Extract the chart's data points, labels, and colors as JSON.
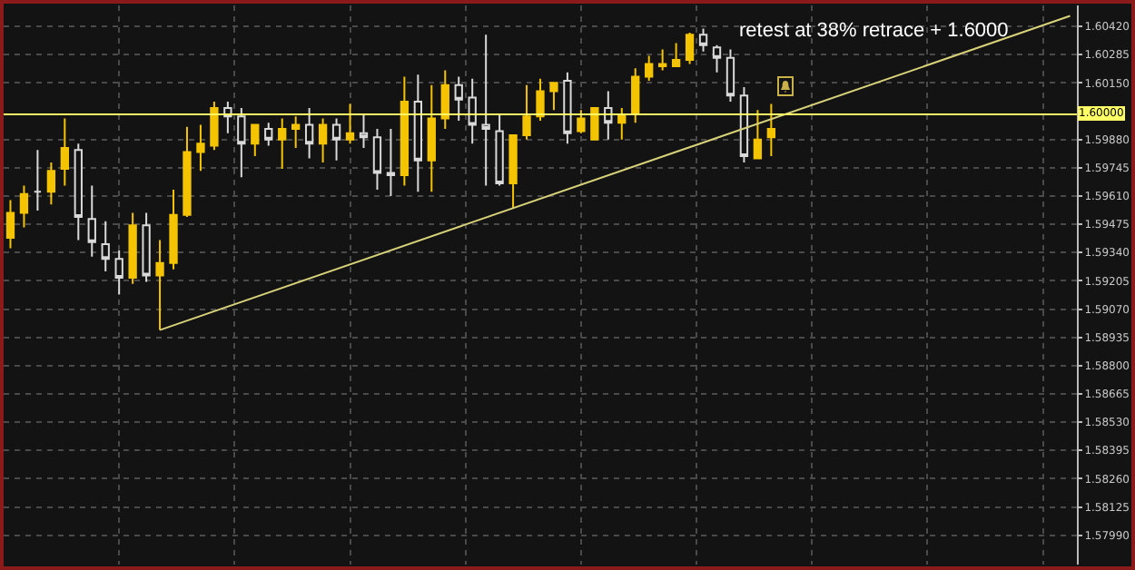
{
  "chart_data": {
    "type": "candlestick",
    "categories": [
      null,
      null,
      null,
      null,
      null,
      null,
      null,
      null,
      null,
      null,
      null,
      null,
      null,
      null,
      null,
      null,
      null,
      null,
      null,
      null,
      null,
      null,
      null,
      null,
      null,
      null,
      null,
      null,
      null,
      null,
      null,
      null,
      null,
      null,
      null,
      null,
      null,
      null,
      null,
      null,
      null,
      null,
      null,
      null,
      null,
      null,
      null,
      null,
      null,
      null,
      null,
      null,
      null,
      null,
      null,
      null,
      null,
      null,
      null,
      null,
      null,
      null,
      null,
      null,
      null,
      null,
      null,
      null,
      null,
      null,
      null,
      null,
      null,
      null,
      null,
      null,
      null,
      null,
      null
    ],
    "ohlc": [
      [
        1.5941,
        1.5959,
        1.5936,
        1.5953
      ],
      [
        1.5953,
        1.5966,
        1.5946,
        1.5962
      ],
      [
        1.5963,
        1.5983,
        1.5954,
        1.5963
      ],
      [
        1.5963,
        1.5977,
        1.5957,
        1.5973
      ],
      [
        1.5974,
        1.5998,
        1.5966,
        1.5984
      ],
      [
        1.5983,
        1.5986,
        1.594,
        1.5951
      ],
      [
        1.595,
        1.5966,
        1.5932,
        1.5939
      ],
      [
        1.5938,
        1.5949,
        1.5925,
        1.5931
      ],
      [
        1.5931,
        1.5935,
        1.5914,
        1.5922
      ],
      [
        1.5922,
        1.5953,
        1.5919,
        1.5947
      ],
      [
        1.5947,
        1.5953,
        1.592,
        1.5923
      ],
      [
        1.5923,
        1.594,
        1.5897,
        1.5929
      ],
      [
        1.5929,
        1.5964,
        1.5926,
        1.5952
      ],
      [
        1.5952,
        1.5994,
        1.5951,
        1.5982
      ],
      [
        1.5982,
        1.5995,
        1.5973,
        1.5986
      ],
      [
        1.5985,
        1.6006,
        1.5983,
        1.6003
      ],
      [
        1.6003,
        1.6006,
        1.5991,
        1.5999
      ],
      [
        1.5999,
        1.6003,
        1.597,
        1.5986
      ],
      [
        1.5986,
        1.5995,
        1.598,
        1.5995
      ],
      [
        1.5993,
        1.5996,
        1.5985,
        1.5988
      ],
      [
        1.5988,
        1.5998,
        1.5974,
        1.5993
      ],
      [
        1.5993,
        1.5999,
        1.5984,
        1.5995
      ],
      [
        1.5995,
        1.6003,
        1.5979,
        1.5986
      ],
      [
        1.5986,
        1.5998,
        1.5977,
        1.5995
      ],
      [
        1.5995,
        1.5998,
        1.5978,
        1.5988
      ],
      [
        1.5988,
        1.6005,
        1.5986,
        1.5991
      ],
      [
        1.5991,
        1.6,
        1.5984,
        1.5989
      ],
      [
        1.5989,
        1.5993,
        1.5964,
        1.5972
      ],
      [
        1.5972,
        1.5993,
        1.5961,
        1.5971
      ],
      [
        1.5971,
        1.6018,
        1.5966,
        1.6006
      ],
      [
        1.6006,
        1.6019,
        1.5963,
        1.5978
      ],
      [
        1.5978,
        1.6014,
        1.5963,
        1.5998
      ],
      [
        1.5998,
        1.6021,
        1.5993,
        1.6014
      ],
      [
        1.6014,
        1.6018,
        1.5997,
        1.6007
      ],
      [
        1.6008,
        1.6017,
        1.5986,
        1.5995
      ],
      [
        1.5995,
        1.6038,
        1.5966,
        1.5993
      ],
      [
        1.5992,
        1.6,
        1.5966,
        1.5967
      ],
      [
        1.5967,
        1.599,
        1.5955,
        1.599
      ],
      [
        1.599,
        1.6014,
        1.5988,
        1.5999
      ],
      [
        1.5999,
        1.6017,
        1.5997,
        1.6011
      ],
      [
        1.6011,
        1.6015,
        1.6002,
        1.6015
      ],
      [
        1.6016,
        1.602,
        1.5986,
        1.5991
      ],
      [
        1.5992,
        1.6002,
        1.5991,
        1.5998
      ],
      [
        1.5988,
        1.6003,
        1.5988,
        1.6003
      ],
      [
        1.6003,
        1.6011,
        1.5988,
        1.5996
      ],
      [
        1.5996,
        1.6003,
        1.5988,
        1.6
      ],
      [
        1.6,
        1.6022,
        1.5996,
        1.6018
      ],
      [
        1.6018,
        1.6028,
        1.6016,
        1.6024
      ],
      [
        1.6023,
        1.6031,
        1.6021,
        1.6024
      ],
      [
        1.6023,
        1.6034,
        1.6023,
        1.6026
      ],
      [
        1.6026,
        1.6039,
        1.6024,
        1.6038
      ],
      [
        1.6038,
        1.6041,
        1.603,
        1.6033
      ],
      [
        1.6032,
        1.6033,
        1.602,
        1.6027
      ],
      [
        1.6027,
        1.6031,
        1.6006,
        1.6009
      ],
      [
        1.6009,
        1.6013,
        1.5977,
        1.598
      ],
      [
        1.5979,
        1.6002,
        1.5979,
        1.5988
      ],
      [
        1.5989,
        1.6005,
        1.598,
        1.5993
      ],
      null,
      null,
      null,
      null,
      null,
      null,
      null,
      null,
      null,
      null,
      null,
      null,
      null,
      null,
      null,
      null,
      null,
      null,
      null,
      null,
      null,
      null
    ],
    "colors": [
      "#f5c400",
      "#f5c400",
      "#d9d9d9",
      "#f5c400",
      "#f5c400",
      "#d9d9d9",
      "#d9d9d9",
      "#d9d9d9",
      "#d9d9d9",
      "#f5c400",
      "#d9d9d9",
      "#f5c400",
      "#f5c400",
      "#f5c400",
      "#f5c400",
      "#f5c400",
      "#d9d9d9",
      "#d9d9d9",
      "#f5c400",
      "#d9d9d9",
      "#f5c400",
      "#f5c400",
      "#d9d9d9",
      "#f5c400",
      "#d9d9d9",
      "#f5c400",
      "#d9d9d9",
      "#d9d9d9",
      "#d9d9d9",
      "#f5c400",
      "#d9d9d9",
      "#f5c400",
      "#f5c400",
      "#d9d9d9",
      "#d9d9d9",
      "#d9d9d9",
      "#d9d9d9",
      "#f5c400",
      "#f5c400",
      "#f5c400",
      "#f5c400",
      "#d9d9d9",
      "#f5c400",
      "#f5c400",
      "#d9d9d9",
      "#f5c400",
      "#f5c400",
      "#f5c400",
      "#f5c400",
      "#f5c400",
      "#f5c400",
      "#d9d9d9",
      "#d9d9d9",
      "#d9d9d9",
      "#d9d9d9",
      "#f5c400",
      "#f5c400",
      null,
      null,
      null,
      null,
      null,
      null,
      null,
      null,
      null,
      null,
      null,
      null,
      null,
      null,
      null,
      null,
      null,
      null,
      null,
      null,
      null,
      null
    ],
    "series": [
      {
        "type": "line",
        "color": "#d8d27a",
        "values": [
          null,
          null,
          null,
          null,
          null,
          null,
          null,
          null,
          null,
          null,
          null,
          1.5897,
          null,
          null,
          null,
          null,
          null,
          null,
          null,
          null,
          null,
          null,
          null,
          null,
          null,
          null,
          null,
          null,
          null,
          null,
          null,
          null,
          null,
          null,
          null,
          null,
          null,
          null,
          null,
          null,
          null,
          null,
          null,
          null,
          null,
          null,
          null,
          null,
          null,
          null,
          null,
          null,
          null,
          null,
          null,
          null,
          null,
          null,
          null,
          null,
          null,
          null,
          null,
          null,
          null,
          null,
          null,
          null,
          null,
          null,
          null,
          null,
          null,
          null,
          null,
          null,
          null,
          null,
          1.6047
        ]
      }
    ],
    "ylim": [
      1.5785,
      1.6052
    ],
    "yticks": [
      {
        "value": 1.5799,
        "label": "1.57990"
      },
      {
        "value": 1.58125,
        "label": "1.58125"
      },
      {
        "value": 1.5826,
        "label": "1.58260"
      },
      {
        "value": 1.58395,
        "label": "1.58395"
      },
      {
        "value": 1.5853,
        "label": "1.58530"
      },
      {
        "value": 1.58665,
        "label": "1.58665"
      },
      {
        "value": 1.588,
        "label": "1.58800"
      },
      {
        "value": 1.58935,
        "label": "1.58935"
      },
      {
        "value": 1.5907,
        "label": "1.59070"
      },
      {
        "value": 1.59205,
        "label": "1.59205"
      },
      {
        "value": 1.5934,
        "label": "1.59340"
      },
      {
        "value": 1.59475,
        "label": "1.59475"
      },
      {
        "value": 1.5961,
        "label": "1.59610"
      },
      {
        "value": 1.59745,
        "label": "1.59745"
      },
      {
        "value": 1.5988,
        "label": "1.59880"
      },
      {
        "value": 1.6015,
        "label": "1.60150"
      },
      {
        "value": 1.60285,
        "label": "1.60285"
      },
      {
        "value": 1.6042,
        "label": "1.60420"
      }
    ],
    "ref_lines": [
      {
        "axis": "y",
        "value": 1.6,
        "label": "1.60000",
        "color": "#ffff66"
      }
    ],
    "annotations": [
      "retest at 38% retrace + 1.6000"
    ],
    "grid": true,
    "tick_labels": "y"
  }
}
